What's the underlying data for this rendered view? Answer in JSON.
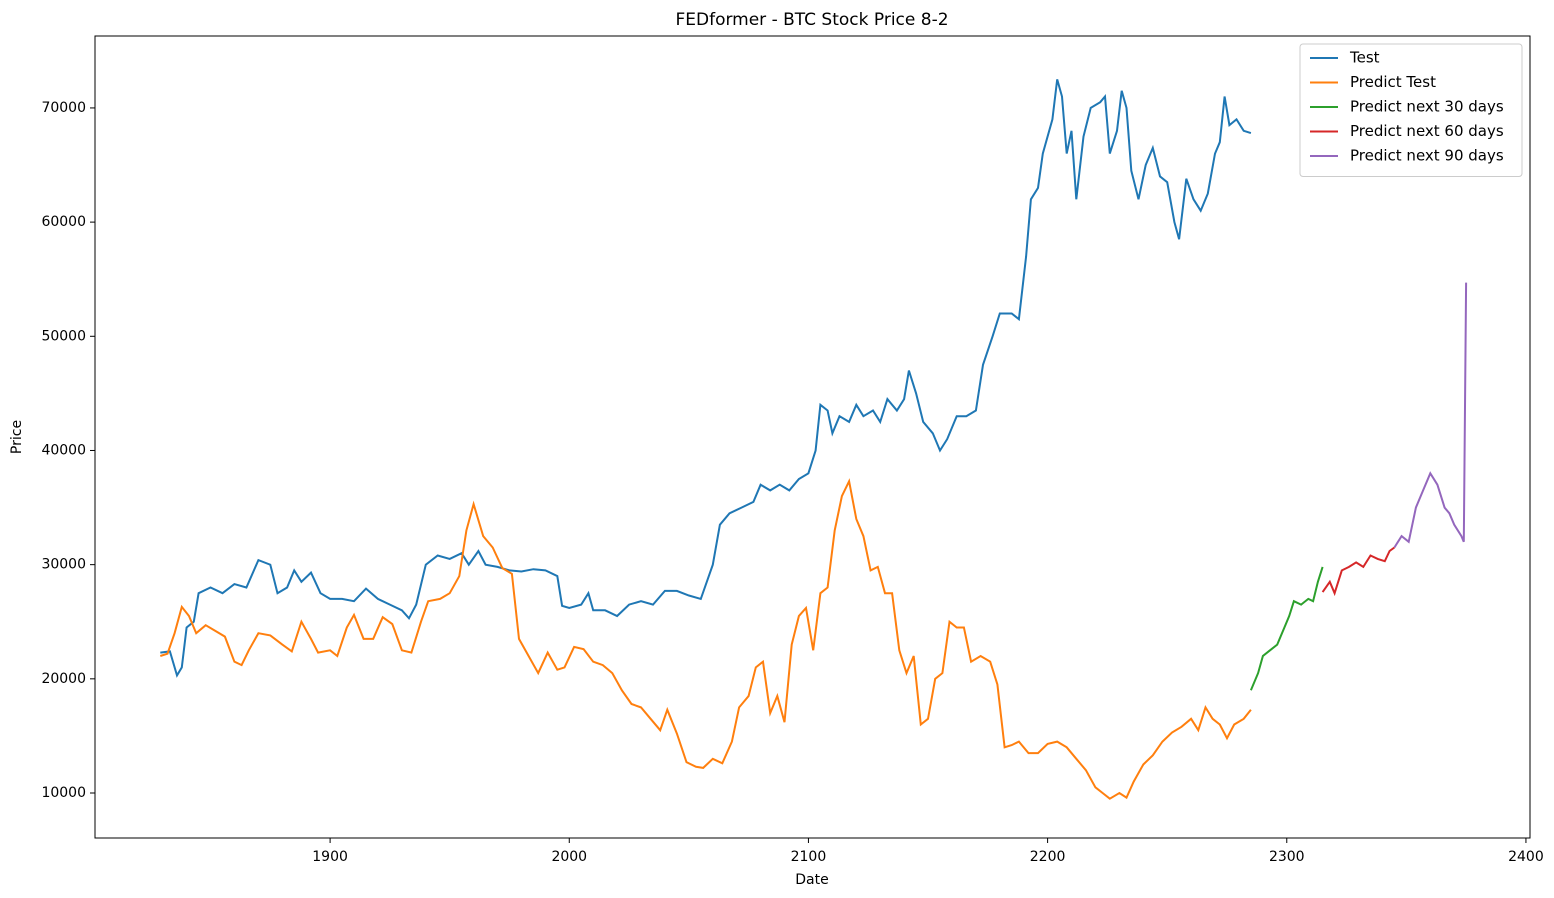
{
  "chart_data": {
    "type": "line",
    "title": "FEDformer - BTC Stock Price 8-2",
    "xlabel": "Date",
    "ylabel": "Price",
    "xlim": [
      1801.7,
      2401.7
    ],
    "ylim": [
      6060,
      76300
    ],
    "xticks": [
      1900,
      2000,
      2100,
      2200,
      2300,
      2400
    ],
    "yticks": [
      10000,
      20000,
      30000,
      40000,
      50000,
      60000,
      70000
    ],
    "legend": "upper right",
    "series": [
      {
        "name": "Test",
        "color": "#1f77b4",
        "x": [
          1829,
          1833,
          1836,
          1838,
          1840,
          1843,
          1845,
          1850,
          1855,
          1860,
          1865,
          1870,
          1875,
          1878,
          1882,
          1885,
          1888,
          1892,
          1896,
          1900,
          1905,
          1910,
          1915,
          1920,
          1925,
          1930,
          1933,
          1936,
          1940,
          1945,
          1950,
          1955,
          1958,
          1962,
          1965,
          1970,
          1975,
          1980,
          1985,
          1990,
          1995,
          1997,
          2000,
          2005,
          2008,
          2010,
          2015,
          2020,
          2025,
          2030,
          2035,
          2040,
          2045,
          2050,
          2055,
          2060,
          2063,
          2067,
          2072,
          2077,
          2080,
          2084,
          2088,
          2092,
          2096,
          2100,
          2103,
          2105,
          2108,
          2110,
          2113,
          2117,
          2120,
          2123,
          2127,
          2130,
          2133,
          2137,
          2140,
          2142,
          2145,
          2148,
          2152,
          2155,
          2158,
          2162,
          2166,
          2170,
          2173,
          2177,
          2180,
          2185,
          2188,
          2191,
          2193,
          2196,
          2198,
          2202,
          2204,
          2206,
          2208,
          2210,
          2212,
          2215,
          2218,
          2222,
          2224,
          2226,
          2229,
          2231,
          2233,
          2235,
          2238,
          2241,
          2244,
          2247,
          2250,
          2253,
          2255,
          2258,
          2261,
          2264,
          2267,
          2270,
          2272,
          2274,
          2276,
          2279,
          2282,
          2285
        ],
        "values": [
          22300,
          22400,
          20300,
          21000,
          24500,
          25000,
          27500,
          28000,
          27500,
          28300,
          28000,
          30400,
          30000,
          27500,
          28000,
          29500,
          28500,
          29300,
          27500,
          27000,
          27000,
          26800,
          27900,
          27000,
          26500,
          26000,
          25300,
          26500,
          30000,
          30800,
          30500,
          31000,
          30000,
          31200,
          30000,
          29800,
          29500,
          29400,
          29600,
          29500,
          29000,
          26400,
          26200,
          26500,
          27500,
          26000,
          26000,
          25500,
          26500,
          26800,
          26500,
          27700,
          27700,
          27300,
          27000,
          30000,
          33500,
          34500,
          35000,
          35500,
          37000,
          36500,
          37000,
          36500,
          37500,
          38000,
          40000,
          44000,
          43500,
          41500,
          43000,
          42500,
          44000,
          43000,
          43500,
          42500,
          44500,
          43500,
          44500,
          47000,
          45000,
          42500,
          41500,
          40000,
          41000,
          43000,
          43000,
          43500,
          47500,
          50000,
          52000,
          52000,
          51500,
          57000,
          62000,
          63000,
          66000,
          69000,
          72500,
          71000,
          66000,
          68000,
          62000,
          67500,
          70000,
          70500,
          71000,
          66000,
          68000,
          71500,
          70000,
          64500,
          62000,
          65000,
          66500,
          64000,
          63500,
          60000,
          58500,
          63800,
          62000,
          61000,
          62500,
          66000,
          67000,
          71000,
          68500,
          69000,
          68000,
          67800
        ]
      },
      {
        "name": "Predict Test",
        "color": "#ff7f0e",
        "x": [
          1829,
          1832,
          1835,
          1838,
          1841,
          1844,
          1848,
          1852,
          1856,
          1860,
          1863,
          1866,
          1870,
          1875,
          1880,
          1884,
          1888,
          1892,
          1895,
          1900,
          1903,
          1907,
          1910,
          1914,
          1918,
          1922,
          1926,
          1930,
          1934,
          1938,
          1941,
          1946,
          1950,
          1954,
          1957,
          1960,
          1964,
          1968,
          1972,
          1976,
          1979,
          1983,
          1987,
          1991,
          1995,
          1998,
          2002,
          2006,
          2010,
          2014,
          2018,
          2022,
          2026,
          2030,
          2034,
          2038,
          2041,
          2045,
          2049,
          2053,
          2056,
          2060,
          2064,
          2068,
          2071,
          2075,
          2078,
          2081,
          2084,
          2087,
          2090,
          2093,
          2096,
          2099,
          2102,
          2105,
          2108,
          2111,
          2114,
          2117,
          2120,
          2123,
          2126,
          2129,
          2132,
          2135,
          2138,
          2141,
          2144,
          2147,
          2150,
          2153,
          2156,
          2159,
          2162,
          2165,
          2168,
          2172,
          2176,
          2179,
          2182,
          2185,
          2188,
          2192,
          2196,
          2200,
          2204,
          2208,
          2212,
          2216,
          2220,
          2223,
          2226,
          2230,
          2233,
          2236,
          2240,
          2244,
          2248,
          2252,
          2256,
          2260,
          2263,
          2266,
          2269,
          2272,
          2275,
          2278,
          2282,
          2285
        ],
        "values": [
          22000,
          22200,
          24000,
          26300,
          25500,
          24000,
          24700,
          24200,
          23700,
          21500,
          21200,
          22500,
          24000,
          23800,
          23000,
          22400,
          25000,
          23500,
          22300,
          22500,
          22000,
          24500,
          25600,
          23500,
          23500,
          25400,
          24800,
          22500,
          22300,
          25000,
          26800,
          27000,
          27500,
          29000,
          33000,
          35300,
          32500,
          31500,
          29700,
          29200,
          23500,
          22000,
          20500,
          22300,
          20800,
          21000,
          22800,
          22600,
          21500,
          21200,
          20500,
          19000,
          17800,
          17500,
          16500,
          15500,
          17300,
          15200,
          12700,
          12300,
          12200,
          13000,
          12600,
          14500,
          17500,
          18500,
          21000,
          21500,
          17000,
          18500,
          16200,
          23000,
          25500,
          26200,
          22500,
          27500,
          28000,
          33000,
          36000,
          37300,
          34000,
          32500,
          29500,
          29800,
          27500,
          27500,
          22500,
          20500,
          22000,
          16000,
          16500,
          20000,
          20500,
          25000,
          24500,
          24500,
          21500,
          22000,
          21500,
          19500,
          14000,
          14200,
          14500,
          13500,
          13500,
          14300,
          14500,
          14000,
          13000,
          12000,
          10500,
          10000,
          9500,
          10000,
          9600,
          11000,
          12500,
          13300,
          14500,
          15300,
          15800,
          16500,
          15500,
          17500,
          16500,
          16000,
          14800,
          16000,
          16500,
          17300
        ]
      },
      {
        "name": "Predict next 30 days",
        "color": "#2ca02c",
        "x": [
          2285,
          2288,
          2290,
          2293,
          2296,
          2299,
          2301,
          2303,
          2306,
          2309,
          2311,
          2313,
          2315
        ],
        "values": [
          19000,
          20500,
          22000,
          22500,
          23000,
          24500,
          25500,
          26800,
          26500,
          27000,
          26800,
          28500,
          29800
        ]
      },
      {
        "name": "Predict next 60 days",
        "color": "#d62728",
        "x": [
          2315,
          2318,
          2320,
          2323,
          2326,
          2329,
          2332,
          2335,
          2338,
          2341,
          2343,
          2345
        ],
        "values": [
          27600,
          28500,
          27500,
          29500,
          29800,
          30200,
          29800,
          30800,
          30500,
          30300,
          31200,
          31500
        ]
      },
      {
        "name": "Predict next 90 days",
        "color": "#9467bd",
        "x": [
          2345,
          2348,
          2351,
          2354,
          2357,
          2360,
          2363,
          2366,
          2368,
          2370,
          2373,
          2374,
          2375
        ],
        "values": [
          31500,
          32500,
          32000,
          35000,
          36500,
          38000,
          37000,
          35000,
          34500,
          33500,
          32500,
          32000,
          54700
        ]
      }
    ]
  }
}
